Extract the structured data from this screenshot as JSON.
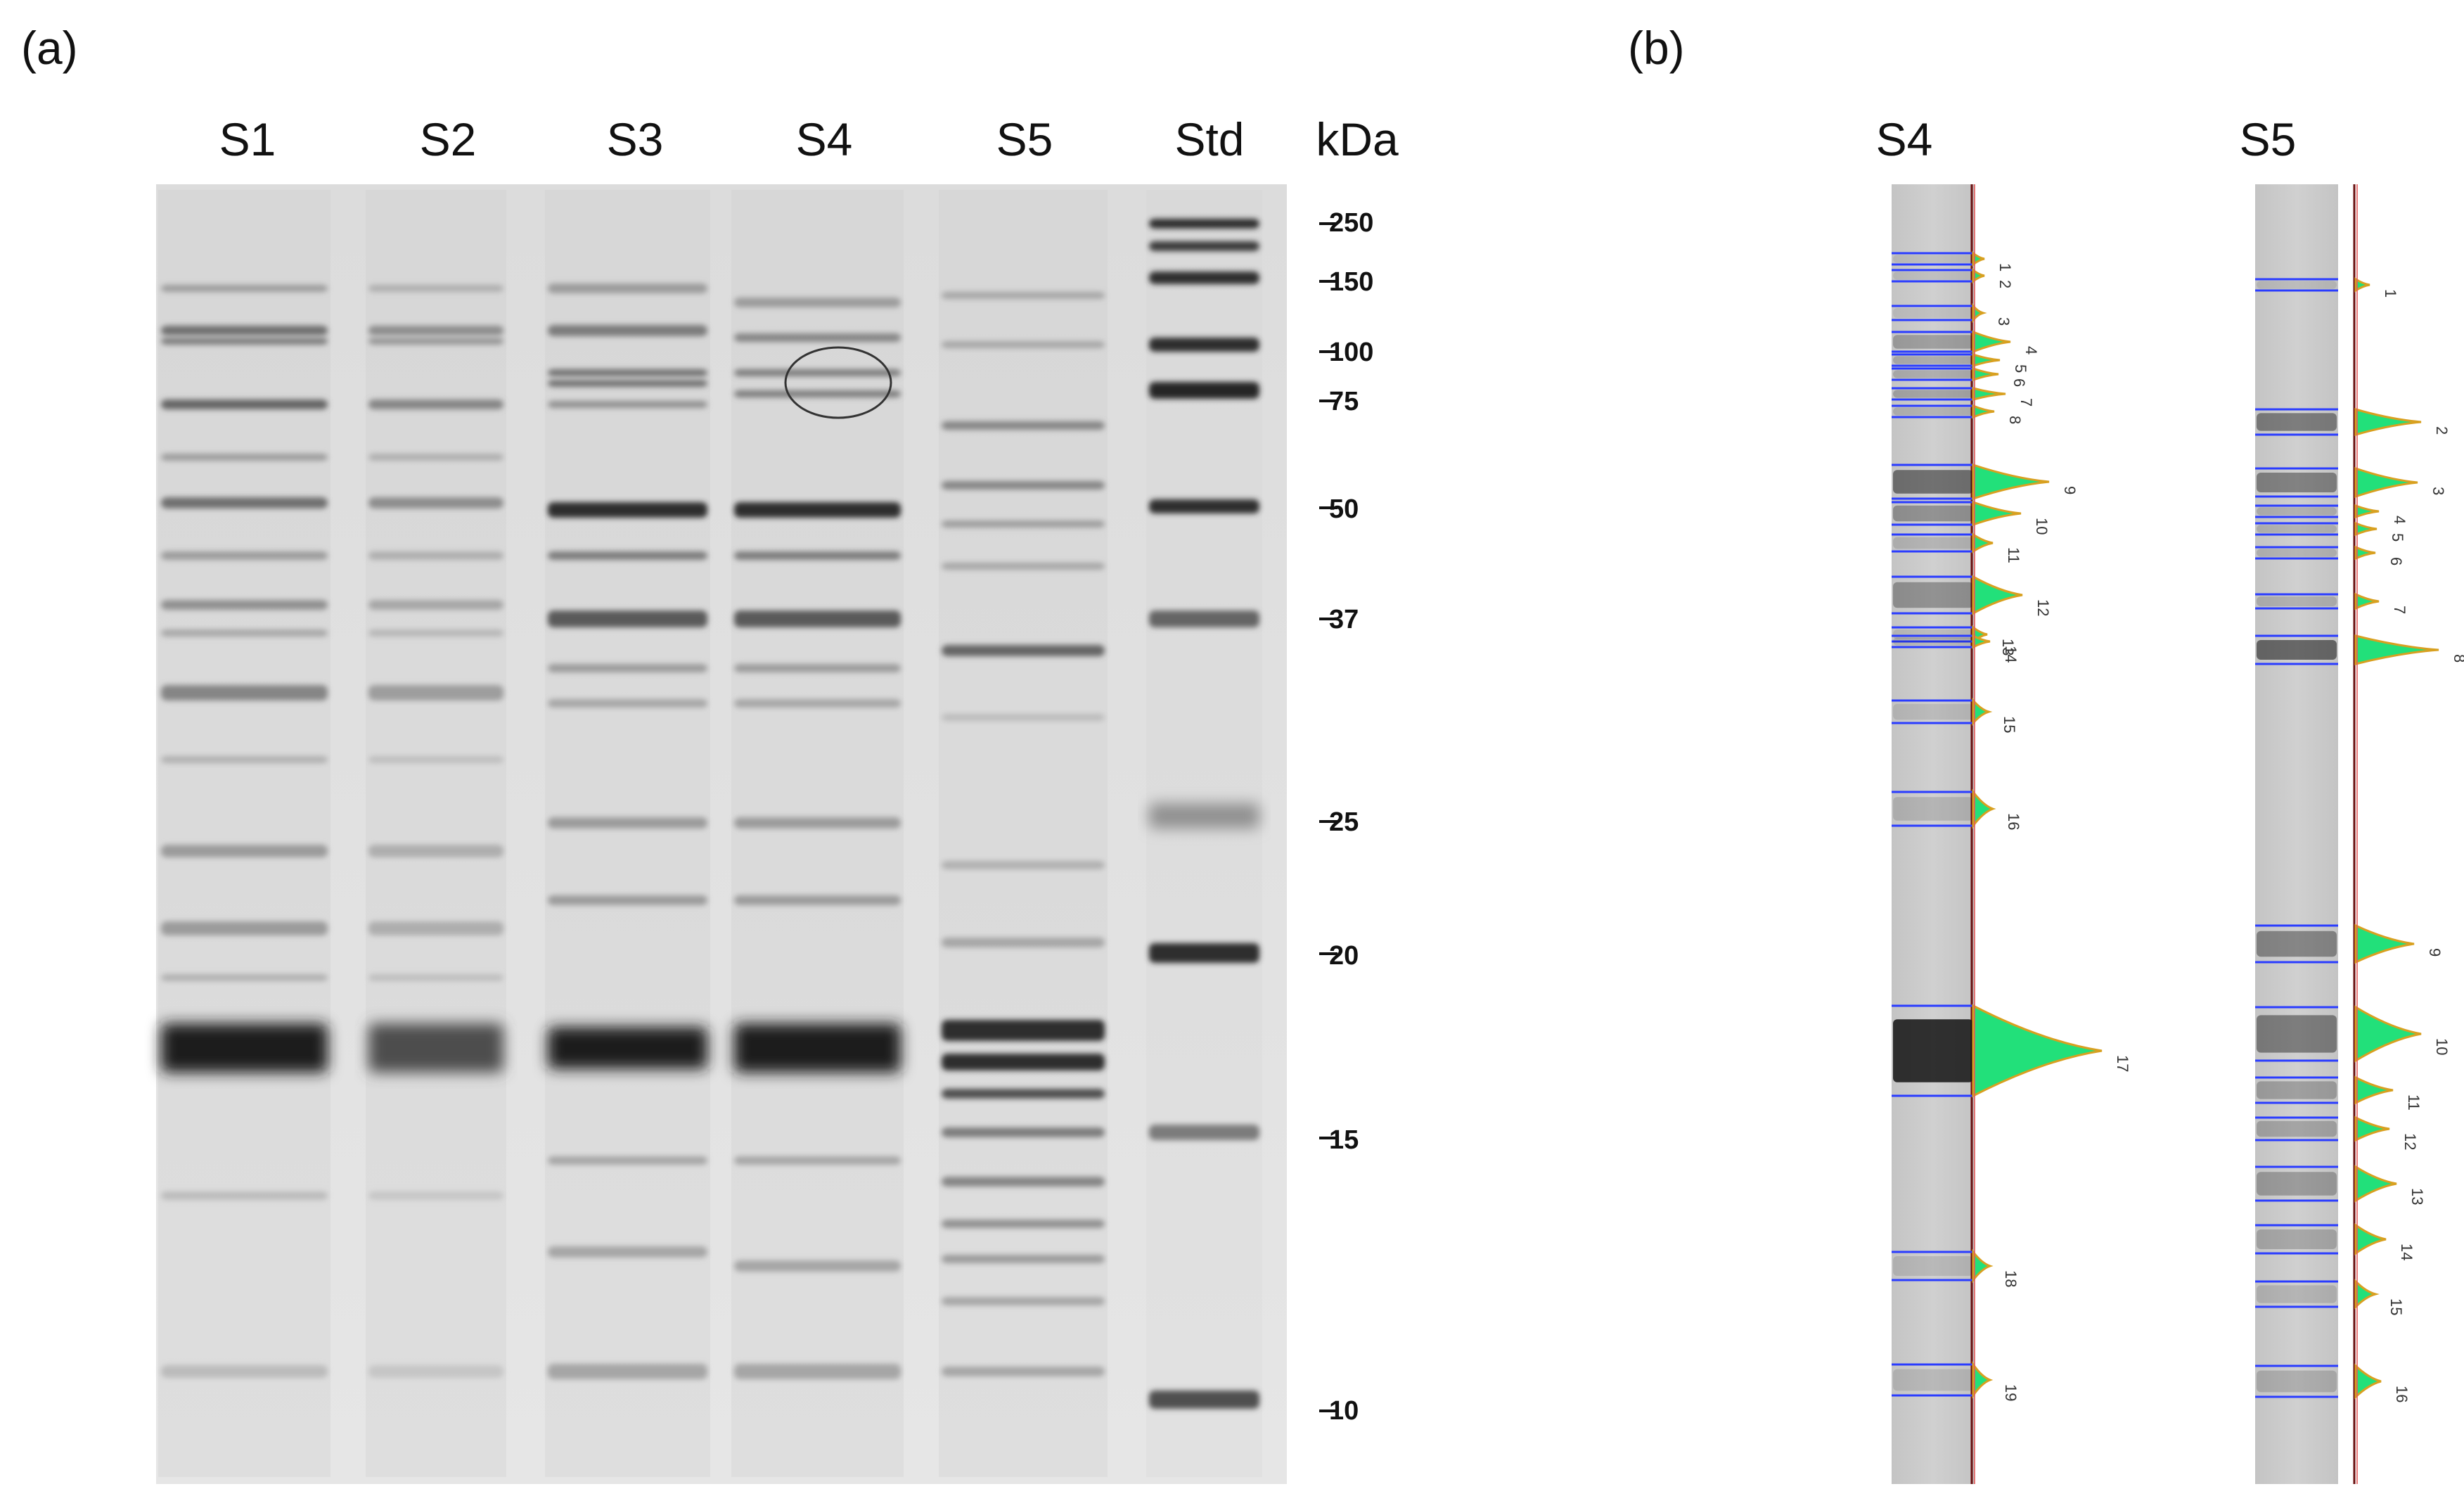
{
  "panel_a": {
    "label": "(a)",
    "lanes": [
      "S1",
      "S2",
      "S3",
      "S4",
      "S5",
      "Std"
    ],
    "unit": "kDa",
    "markers": [
      "250",
      "150",
      "100",
      "75",
      "50",
      "37",
      "25",
      "20",
      "15",
      "10"
    ]
  },
  "panel_b": {
    "label": "(b)",
    "lanes": [
      {
        "name": "S4",
        "peaks": [
          "1",
          "2",
          "3",
          "4",
          "5",
          "6",
          "7",
          "8",
          "9",
          "10",
          "11",
          "12",
          "13",
          "14",
          "15",
          "16",
          "17",
          "18",
          "19"
        ]
      },
      {
        "name": "S5",
        "peaks": [
          "1",
          "2",
          "3",
          "4",
          "5",
          "6",
          "7",
          "8",
          "9",
          "10",
          "11",
          "12",
          "13",
          "14",
          "15",
          "16"
        ]
      }
    ]
  },
  "colors": {
    "band_line": "#2a3cff",
    "peak_fill": "#22e07a",
    "peak_outline": "#d8a020",
    "trace": "#e35a5a",
    "baseline": "#6a1010"
  }
}
